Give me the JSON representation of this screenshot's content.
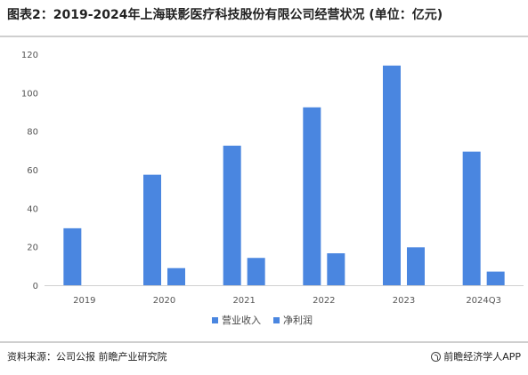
{
  "title": "图表2：2019-2024年上海联影医疗科技股份有限公司经营状况 (单位：亿元)",
  "source": "资料来源：公司公报 前瞻产业研究院",
  "brand": "前瞻经济学人APP",
  "chart_data": {
    "type": "bar",
    "categories": [
      "2019",
      "2020",
      "2021",
      "2022",
      "2023",
      "2024Q3"
    ],
    "series": [
      {
        "name": "营业收入",
        "color": "#4a86e0",
        "values": [
          29.6,
          57.4,
          72.5,
          92.4,
          114.1,
          69.4
        ]
      },
      {
        "name": "净利润",
        "color": "#4a86e0",
        "values": [
          null,
          8.9,
          14.2,
          16.6,
          19.7,
          7.1
        ]
      }
    ],
    "yticks": [
      "0",
      "20",
      "40",
      "60",
      "80",
      "100",
      "120"
    ],
    "ylim": [
      0,
      120
    ],
    "grid": false,
    "legend": "bottom"
  }
}
